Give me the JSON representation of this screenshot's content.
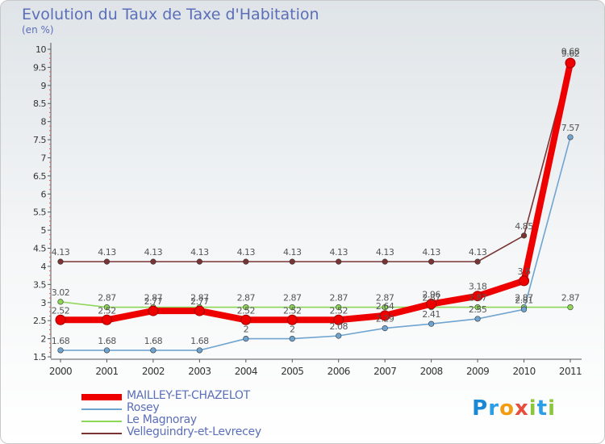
{
  "title": "Evolution du Taux de Taxe d'Habitation",
  "unit_label": "(en %)",
  "logo_text": "Proxiti",
  "chart_data": {
    "type": "line",
    "x": [
      "2000",
      "2001",
      "2002",
      "2003",
      "2004",
      "2005",
      "2006",
      "2007",
      "2008",
      "2009",
      "2010",
      "2011"
    ],
    "ylim": [
      1.5,
      10
    ],
    "yticks": [
      1.5,
      2,
      2.5,
      3,
      3.5,
      4,
      4.5,
      5,
      5.5,
      6,
      6.5,
      7,
      7.5,
      8,
      8.5,
      9,
      9.5,
      10
    ],
    "grid": false,
    "legend_position": "bottom-left",
    "series": [
      {
        "name": "MAILLEY-ET-CHAZELOT",
        "color": "#ee0000",
        "values": [
          2.52,
          2.52,
          2.77,
          2.77,
          2.52,
          2.52,
          2.52,
          2.64,
          2.96,
          3.18,
          3.6,
          9.62
        ],
        "labels": [
          "2.52",
          "2.52",
          "2.77",
          "2.77",
          "2.52",
          "2.52",
          "2.52",
          "2.64",
          "2.96",
          "3.18",
          "3.6",
          "9.62"
        ]
      },
      {
        "name": "Rosey",
        "color": "#6fa4d0",
        "values": [
          1.68,
          1.68,
          1.68,
          1.68,
          2,
          2,
          2.08,
          2.29,
          2.41,
          2.55,
          2.81,
          7.57
        ],
        "labels": [
          "1.68",
          "1.68",
          "1.68",
          "1.68",
          "2",
          "2",
          "2.08",
          "2.29",
          "2.41",
          "2.55",
          "2.81",
          "7.57"
        ]
      },
      {
        "name": "Le Magnoray",
        "color": "#8ed658",
        "values": [
          3.02,
          2.87,
          2.87,
          2.87,
          2.87,
          2.87,
          2.87,
          2.87,
          2.87,
          2.87,
          2.87,
          2.87
        ],
        "labels": [
          "3.02",
          "2.87",
          "2.87",
          "2.87",
          "2.87",
          "2.87",
          "2.87",
          "2.87",
          "2.87",
          "2.87",
          "2.87",
          "2.87"
        ]
      },
      {
        "name": "Velleguindry-et-Levrecey",
        "color": "#7a3434",
        "values": [
          4.13,
          4.13,
          4.13,
          4.13,
          4.13,
          4.13,
          4.13,
          4.13,
          4.13,
          4.13,
          4.85,
          9.68
        ],
        "labels": [
          "4.13",
          "4.13",
          "4.13",
          "4.13",
          "4.13",
          "4.13",
          "4.13",
          "4.13",
          "4.13",
          "4.13",
          "4.85",
          "9.68"
        ]
      }
    ]
  }
}
